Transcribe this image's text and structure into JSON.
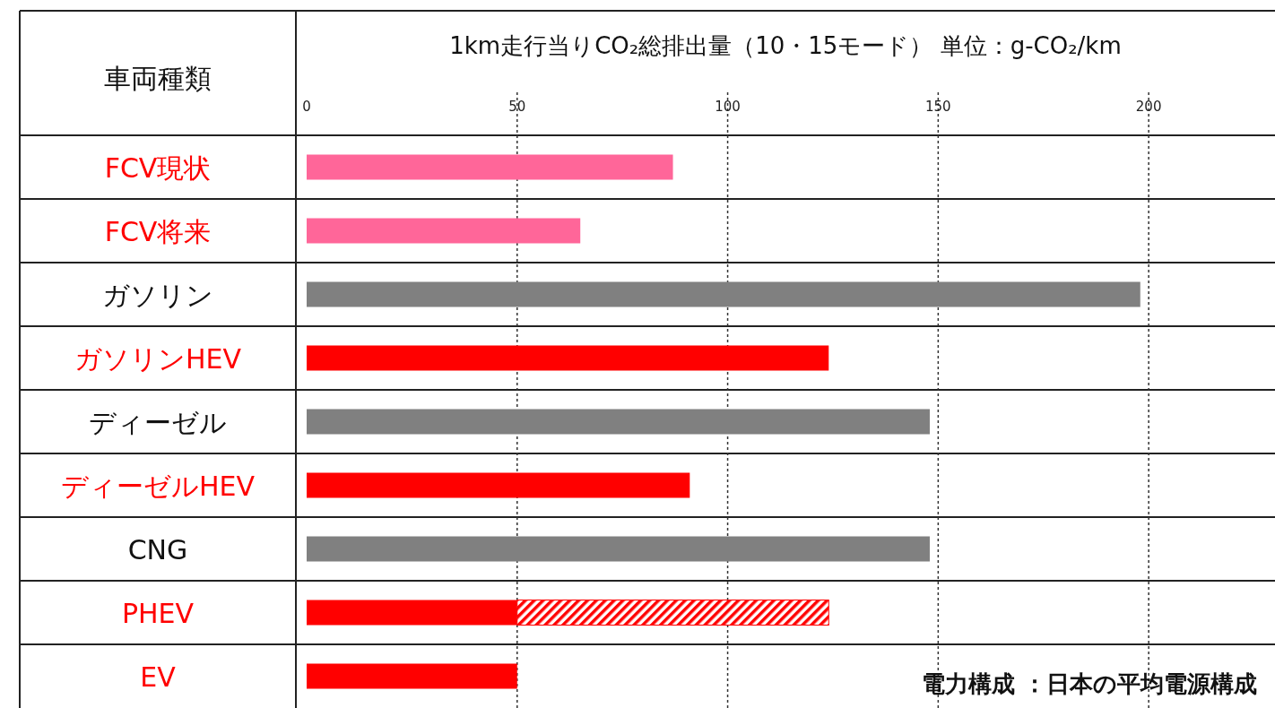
{
  "chart_data": {
    "type": "bar",
    "orientation": "horizontal",
    "stacked": true,
    "title": "1km走行当りCO₂総排出量（10・15モード） 単位：g-CO₂/km",
    "ylabel": "車両種類",
    "categories": [
      "FCV現状",
      "FCV将来",
      "ガソリン",
      "ガソリンHEV",
      "ディーゼル",
      "ディーゼルHEV",
      "CNG",
      "PHEV",
      "EV"
    ],
    "series": [
      {
        "colors": [
          "#ff6699",
          "#ff6699",
          "#808080",
          "#ff0000",
          "#808080",
          "#ff0000",
          "#808080",
          "#ff0000",
          "#ff0000"
        ],
        "values": [
          87,
          65,
          198,
          124,
          148,
          91,
          148,
          50,
          50
        ]
      },
      {
        "color": "#ff0000",
        "values": [
          null,
          null,
          null,
          null,
          null,
          null,
          null,
          74,
          null
        ]
      }
    ],
    "xlim": [
      0,
      230
    ],
    "xticks": [
      0,
      50,
      100,
      150,
      200
    ],
    "grid": "x",
    "annotations": [
      "電力構成 ：日本の平均電源構成"
    ]
  }
}
